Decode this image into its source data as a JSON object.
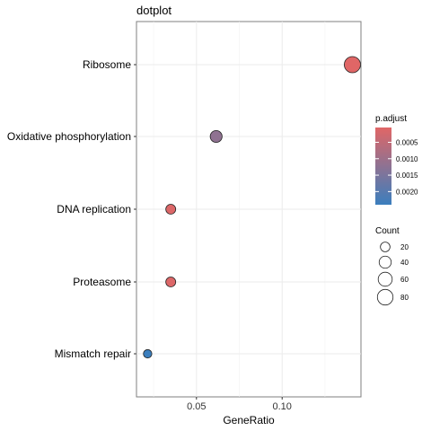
{
  "chart_data": {
    "type": "scatter",
    "title": "dotplot",
    "xlabel": "GeneRatio",
    "ylabel": "",
    "xlim": [
      0.015,
      0.146
    ],
    "xticks": [
      0.05,
      0.1
    ],
    "xtick_labels": [
      "0.05",
      "0.10"
    ],
    "x_minor_ticks": [
      0.025,
      0.075,
      0.125
    ],
    "grid": true,
    "categories": [
      "Ribosome",
      "Oxidative phosphorylation",
      "DNA replication",
      "Proteasome",
      "Mismatch repair"
    ],
    "points": [
      {
        "category": "Ribosome",
        "x": 0.141,
        "count": 88,
        "p_adjust": 5e-05
      },
      {
        "category": "Oxidative phosphorylation",
        "x": 0.0615,
        "count": 38,
        "p_adjust": 0.0012
      },
      {
        "category": "DNA replication",
        "x": 0.035,
        "count": 22,
        "p_adjust": 0.0001
      },
      {
        "category": "Proteasome",
        "x": 0.035,
        "count": 22,
        "p_adjust": 0.0001
      },
      {
        "category": "Mismatch repair",
        "x": 0.0215,
        "count": 13,
        "p_adjust": 0.0024
      }
    ],
    "color_legend": {
      "title": "p.adjust",
      "range": [
        5e-05,
        0.0024
      ],
      "low_color": "#e06666",
      "high_color": "#3b7ebd",
      "ticks": [
        0.0005,
        0.001,
        0.0015,
        0.002
      ],
      "tick_labels": [
        "0.0005",
        "0.0010",
        "0.0015",
        "0.0020"
      ]
    },
    "size_legend": {
      "title": "Count",
      "values": [
        20,
        40,
        60,
        80
      ],
      "labels": [
        "20",
        "40",
        "60",
        "80"
      ]
    },
    "legend_position": "right"
  }
}
